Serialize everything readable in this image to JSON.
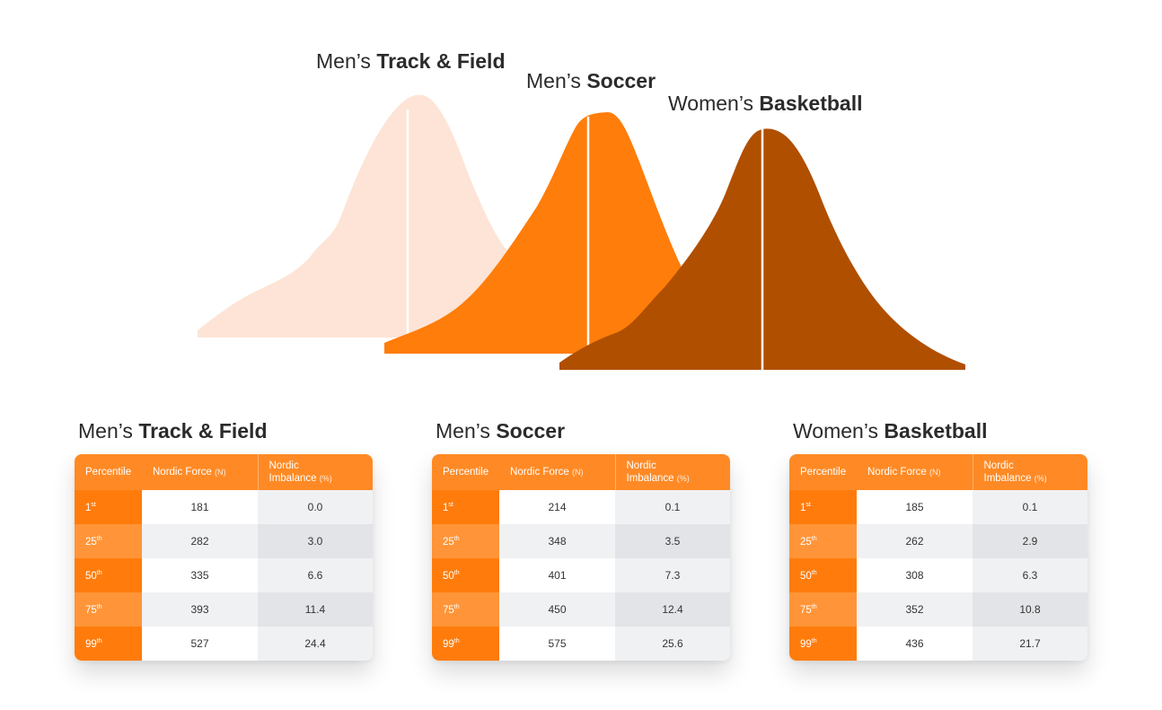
{
  "colors": {
    "track_and_field": "#fde4d7",
    "soccer": "#ff7d0a",
    "basketball": "#b04f00",
    "header_orange": "#ff8a25",
    "percentile_dark": "#ff7c0c",
    "percentile_light": "#ff9538"
  },
  "chart_data": {
    "type": "area",
    "series": [
      {
        "name_light": "Men’s ",
        "name_bold": "Track & Field",
        "color": "#fde4d7"
      },
      {
        "name_light": "Men’s ",
        "name_bold": "Soccer",
        "color": "#ff7d0a"
      },
      {
        "name_light": "Women’s ",
        "name_bold": "Basketball",
        "color": "#b04f00"
      }
    ]
  },
  "tables": [
    {
      "title_light": "Men’s ",
      "title_bold": "Track & Field",
      "headers": {
        "percentile": "Percentile",
        "force": "Nordic Force",
        "force_unit": "(N)",
        "imbalance_line1": "Nordic",
        "imbalance_line2": "Imbalance",
        "imbalance_unit": "(%)"
      },
      "rows": [
        {
          "p": "1",
          "suf": "st",
          "force": "181",
          "imbalance": "0.0"
        },
        {
          "p": "25",
          "suf": "th",
          "force": "282",
          "imbalance": "3.0"
        },
        {
          "p": "50",
          "suf": "th",
          "force": "335",
          "imbalance": "6.6"
        },
        {
          "p": "75",
          "suf": "th",
          "force": "393",
          "imbalance": "11.4"
        },
        {
          "p": "99",
          "suf": "th",
          "force": "527",
          "imbalance": "24.4"
        }
      ]
    },
    {
      "title_light": "Men’s ",
      "title_bold": "Soccer",
      "headers": {
        "percentile": "Percentile",
        "force": "Nordic Force",
        "force_unit": "(N)",
        "imbalance_line1": "Nordic",
        "imbalance_line2": "Imbalance",
        "imbalance_unit": "(%)"
      },
      "rows": [
        {
          "p": "1",
          "suf": "st",
          "force": "214",
          "imbalance": "0.1"
        },
        {
          "p": "25",
          "suf": "th",
          "force": "348",
          "imbalance": "3.5"
        },
        {
          "p": "50",
          "suf": "th",
          "force": "401",
          "imbalance": "7.3"
        },
        {
          "p": "75",
          "suf": "th",
          "force": "450",
          "imbalance": "12.4"
        },
        {
          "p": "99",
          "suf": "th",
          "force": "575",
          "imbalance": "25.6"
        }
      ]
    },
    {
      "title_light": "Women’s ",
      "title_bold": "Basketball",
      "headers": {
        "percentile": "Percentile",
        "force": "Nordic Force",
        "force_unit": "(N)",
        "imbalance_line1": "Nordic",
        "imbalance_line2": "Imbalance",
        "imbalance_unit": "(%)"
      },
      "rows": [
        {
          "p": "1",
          "suf": "st",
          "force": "185",
          "imbalance": "0.1"
        },
        {
          "p": "25",
          "suf": "th",
          "force": "262",
          "imbalance": "2.9"
        },
        {
          "p": "50",
          "suf": "th",
          "force": "308",
          "imbalance": "6.3"
        },
        {
          "p": "75",
          "suf": "th",
          "force": "352",
          "imbalance": "10.8"
        },
        {
          "p": "99",
          "suf": "th",
          "force": "436",
          "imbalance": "21.7"
        }
      ]
    }
  ]
}
